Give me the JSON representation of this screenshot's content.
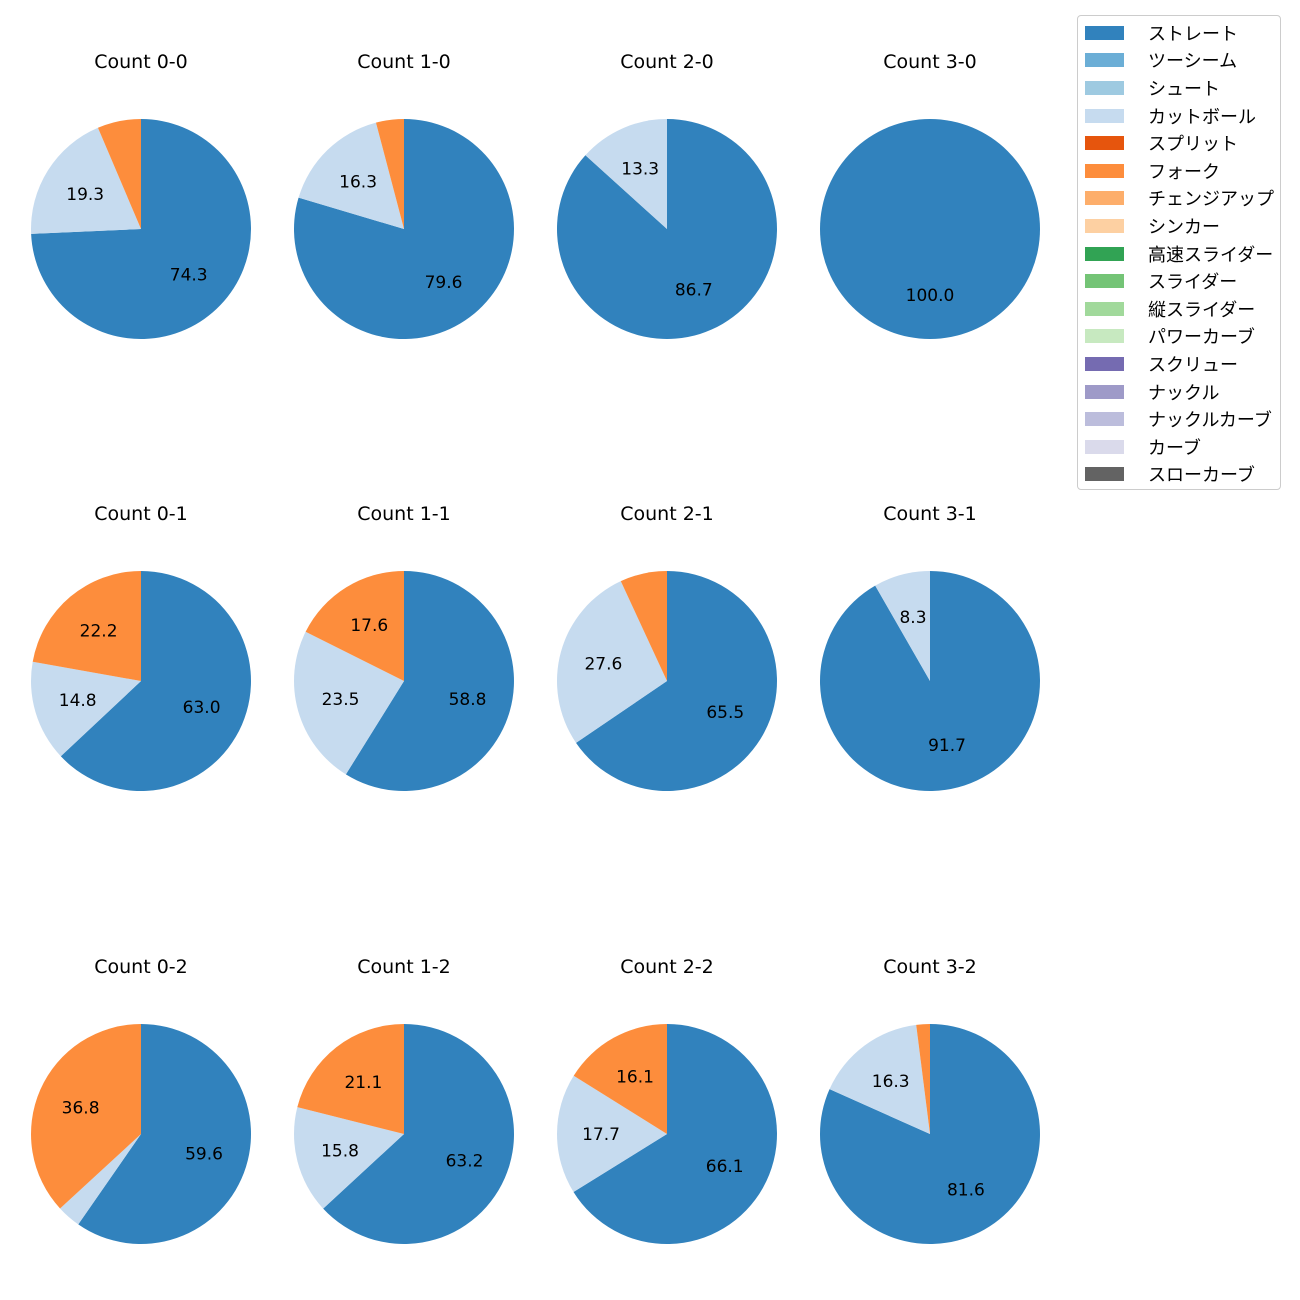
{
  "chart_data": {
    "type": "pie",
    "legend": {
      "position": "top-right",
      "entries": [
        {
          "name": "ストレート",
          "color": "#3182bd"
        },
        {
          "name": "ツーシーム",
          "color": "#6baed6"
        },
        {
          "name": "シュート",
          "color": "#9ecae1"
        },
        {
          "name": "カットボール",
          "color": "#c6dbef"
        },
        {
          "name": "スプリット",
          "color": "#e6550d"
        },
        {
          "name": "フォーク",
          "color": "#fd8d3c"
        },
        {
          "name": "チェンジアップ",
          "color": "#fdae6b"
        },
        {
          "name": "シンカー",
          "color": "#fdd0a2"
        },
        {
          "name": "高速スライダー",
          "color": "#31a354"
        },
        {
          "name": "スライダー",
          "color": "#74c476"
        },
        {
          "name": "縦スライダー",
          "color": "#a1d99b"
        },
        {
          "name": "パワーカーブ",
          "color": "#c7e9c0"
        },
        {
          "name": "スクリュー",
          "color": "#756bb1"
        },
        {
          "name": "ナックル",
          "color": "#9e9ac8"
        },
        {
          "name": "ナックルカーブ",
          "color": "#bcbddc"
        },
        {
          "name": "カーブ",
          "color": "#dadaeb"
        },
        {
          "name": "スローカーブ",
          "color": "#636363"
        }
      ]
    },
    "pies": [
      {
        "title": "Count 0-0",
        "slices": [
          {
            "name": "ストレート",
            "value": 74.3,
            "label": "74.3"
          },
          {
            "name": "カットボール",
            "value": 19.3,
            "label": "19.3"
          },
          {
            "name": "フォーク",
            "value": 6.4,
            "label": ""
          }
        ]
      },
      {
        "title": "Count 1-0",
        "slices": [
          {
            "name": "ストレート",
            "value": 79.6,
            "label": "79.6"
          },
          {
            "name": "カットボール",
            "value": 16.3,
            "label": "16.3"
          },
          {
            "name": "フォーク",
            "value": 4.1,
            "label": ""
          }
        ]
      },
      {
        "title": "Count 2-0",
        "slices": [
          {
            "name": "ストレート",
            "value": 86.7,
            "label": "86.7"
          },
          {
            "name": "カットボール",
            "value": 13.3,
            "label": "13.3"
          }
        ]
      },
      {
        "title": "Count 3-0",
        "slices": [
          {
            "name": "ストレート",
            "value": 100.0,
            "label": "100.0"
          }
        ]
      },
      {
        "title": "Count 0-1",
        "slices": [
          {
            "name": "ストレート",
            "value": 63.0,
            "label": "63.0"
          },
          {
            "name": "カットボール",
            "value": 14.8,
            "label": "14.8"
          },
          {
            "name": "フォーク",
            "value": 22.2,
            "label": "22.2"
          }
        ]
      },
      {
        "title": "Count 1-1",
        "slices": [
          {
            "name": "ストレート",
            "value": 58.8,
            "label": "58.8"
          },
          {
            "name": "カットボール",
            "value": 23.5,
            "label": "23.5"
          },
          {
            "name": "フォーク",
            "value": 17.6,
            "label": "17.6"
          }
        ]
      },
      {
        "title": "Count 2-1",
        "slices": [
          {
            "name": "ストレート",
            "value": 65.5,
            "label": "65.5"
          },
          {
            "name": "カットボール",
            "value": 27.6,
            "label": "27.6"
          },
          {
            "name": "フォーク",
            "value": 6.9,
            "label": ""
          }
        ]
      },
      {
        "title": "Count 3-1",
        "slices": [
          {
            "name": "ストレート",
            "value": 91.7,
            "label": "91.7"
          },
          {
            "name": "カットボール",
            "value": 8.3,
            "label": "8.3"
          }
        ]
      },
      {
        "title": "Count 0-2",
        "slices": [
          {
            "name": "ストレート",
            "value": 59.6,
            "label": "59.6"
          },
          {
            "name": "カットボール",
            "value": 3.5,
            "label": ""
          },
          {
            "name": "フォーク",
            "value": 36.8,
            "label": "36.8"
          }
        ]
      },
      {
        "title": "Count 1-2",
        "slices": [
          {
            "name": "ストレート",
            "value": 63.2,
            "label": "63.2"
          },
          {
            "name": "カットボール",
            "value": 15.8,
            "label": "15.8"
          },
          {
            "name": "フォーク",
            "value": 21.1,
            "label": "21.1"
          }
        ]
      },
      {
        "title": "Count 2-2",
        "slices": [
          {
            "name": "ストレート",
            "value": 66.1,
            "label": "66.1"
          },
          {
            "name": "カットボール",
            "value": 17.7,
            "label": "17.7"
          },
          {
            "name": "フォーク",
            "value": 16.1,
            "label": "16.1"
          }
        ]
      },
      {
        "title": "Count 3-2",
        "slices": [
          {
            "name": "ストレート",
            "value": 81.6,
            "label": "81.6"
          },
          {
            "name": "カットボール",
            "value": 16.3,
            "label": "16.3"
          },
          {
            "name": "フォーク",
            "value": 2.0,
            "label": ""
          }
        ]
      }
    ]
  }
}
